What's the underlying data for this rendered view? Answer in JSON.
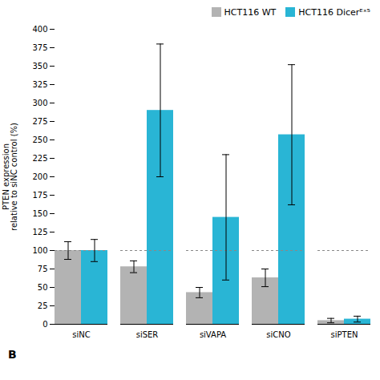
{
  "chart_data": {
    "type": "bar",
    "categories": [
      "siNC",
      "siSER",
      "siVAPA",
      "siCNO",
      "siPTEN"
    ],
    "series": [
      {
        "name": "HCT116 WT",
        "color": "#b3b3b3",
        "values": [
          100,
          78,
          43,
          63,
          5
        ],
        "errors": [
          12,
          8,
          7,
          12,
          3
        ]
      },
      {
        "name": "HCT116 Dicerᴱˣ⁵",
        "color": "#29b5d5",
        "values": [
          100,
          290,
          145,
          257,
          7
        ],
        "errors": [
          15,
          90,
          85,
          95,
          4
        ]
      }
    ],
    "ylabel": "PTEN expression\nrelative to siNC control (%)",
    "ylim": [
      0,
      400
    ],
    "yticks": [
      0,
      25,
      50,
      75,
      100,
      125,
      150,
      175,
      200,
      225,
      250,
      275,
      300,
      325,
      350,
      375,
      400
    ],
    "reference_line": 100,
    "legend": "upper right",
    "annotations": [
      "B"
    ]
  }
}
